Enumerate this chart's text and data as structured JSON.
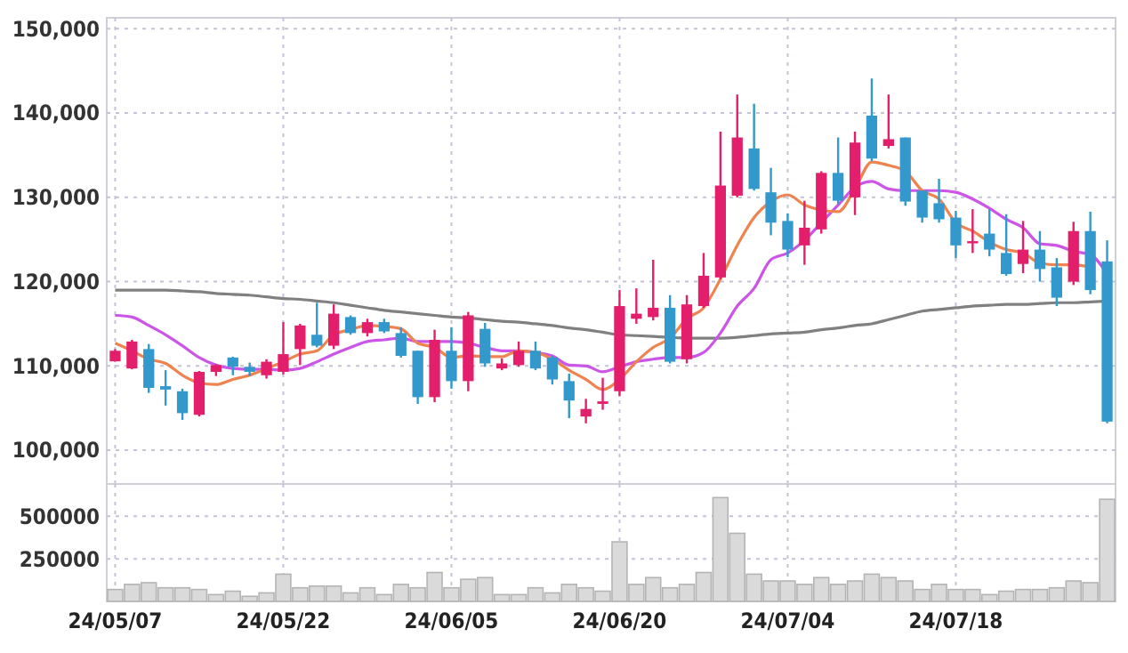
{
  "chart_data": [
    {
      "type": "candlestick",
      "categories": [
        null,
        null,
        null,
        null,
        null,
        null,
        null,
        null,
        null,
        null,
        null,
        null,
        null,
        null,
        null,
        null,
        null,
        null,
        null,
        null,
        null,
        null,
        null,
        null,
        null,
        null,
        null,
        null,
        null,
        null,
        null,
        null,
        null,
        null,
        null,
        null,
        null,
        null,
        null,
        null,
        null,
        null,
        null,
        null,
        null,
        null,
        null,
        null,
        null,
        null,
        null,
        null,
        null,
        null,
        null,
        null,
        null,
        null,
        null,
        null
      ],
      "ohlc": [
        [
          110550,
          112000,
          110500,
          111800
        ],
        [
          109700,
          113100,
          109600,
          112900
        ],
        [
          112000,
          112600,
          106800,
          107400
        ],
        [
          107600,
          109500,
          105300,
          107200
        ],
        [
          107000,
          107300,
          103600,
          104400
        ],
        [
          104200,
          109400,
          104000,
          109300
        ],
        [
          109300,
          110200,
          108800,
          110100
        ],
        [
          111000,
          111100,
          108900,
          109900
        ],
        [
          109900,
          110400,
          108800,
          109300
        ],
        [
          108900,
          110800,
          108500,
          110500
        ],
        [
          109300,
          115200,
          109000,
          111400
        ],
        [
          112000,
          115000,
          110100,
          114800
        ],
        [
          113700,
          117500,
          112200,
          112400
        ],
        [
          112400,
          117300,
          112000,
          116200
        ],
        [
          115800,
          116000,
          113700,
          113900
        ],
        [
          113900,
          115600,
          113500,
          115200
        ],
        [
          115200,
          115600,
          113900,
          114100
        ],
        [
          113900,
          114600,
          111000,
          111200
        ],
        [
          111800,
          111800,
          105500,
          106300
        ],
        [
          106300,
          114300,
          105700,
          113100
        ],
        [
          111800,
          114600,
          107300,
          108200
        ],
        [
          108200,
          116400,
          107000,
          116000
        ],
        [
          114400,
          115100,
          109900,
          110300
        ],
        [
          109700,
          110900,
          109500,
          110300
        ],
        [
          110100,
          112900,
          109900,
          111800
        ],
        [
          111800,
          112900,
          109500,
          109700
        ],
        [
          111000,
          111200,
          107800,
          108400
        ],
        [
          108200,
          109100,
          103800,
          105900
        ],
        [
          104000,
          106100,
          103200,
          104900
        ],
        [
          105500,
          108600,
          104800,
          105800
        ],
        [
          107000,
          119000,
          106400,
          117100
        ],
        [
          115600,
          119200,
          115000,
          116200
        ],
        [
          115800,
          122600,
          115400,
          116900
        ],
        [
          116900,
          118400,
          110300,
          110500
        ],
        [
          110800,
          118400,
          110300,
          117300
        ],
        [
          117100,
          123400,
          116900,
          120700
        ],
        [
          120500,
          137800,
          120300,
          131400
        ],
        [
          130200,
          142200,
          130000,
          137100
        ],
        [
          135800,
          141100,
          130800,
          131000
        ],
        [
          130600,
          133500,
          125500,
          127000
        ],
        [
          127200,
          128100,
          122900,
          123800
        ],
        [
          124300,
          129600,
          122000,
          126400
        ],
        [
          126200,
          133100,
          125700,
          132900
        ],
        [
          132900,
          137100,
          129200,
          129600
        ],
        [
          130000,
          137800,
          127900,
          136500
        ],
        [
          139700,
          144100,
          134300,
          134600
        ],
        [
          136100,
          142200,
          135800,
          136900
        ],
        [
          137100,
          137100,
          129000,
          129500
        ],
        [
          130800,
          130800,
          127000,
          127600
        ],
        [
          129300,
          132200,
          127000,
          127400
        ],
        [
          127600,
          128400,
          122800,
          124300
        ],
        [
          124600,
          128600,
          123400,
          124800
        ],
        [
          125700,
          128600,
          123000,
          123800
        ],
        [
          123400,
          128000,
          120700,
          120900
        ],
        [
          122100,
          127200,
          121000,
          123800
        ],
        [
          123800,
          126000,
          120000,
          121500
        ],
        [
          121700,
          122800,
          117100,
          118100
        ],
        [
          120000,
          127100,
          119600,
          126000
        ],
        [
          126000,
          128300,
          118500,
          119000
        ],
        [
          122400,
          124900,
          103200,
          103400
        ]
      ],
      "colors": [
        "#e31f6c",
        "#e31f6c",
        "#3399cc",
        "#3399cc",
        "#3399cc",
        "#e31f6c",
        "#e31f6c",
        "#3399cc",
        "#3399cc",
        "#e31f6c",
        "#e31f6c",
        "#e31f6c",
        "#3399cc",
        "#e31f6c",
        "#3399cc",
        "#e31f6c",
        "#3399cc",
        "#3399cc",
        "#3399cc",
        "#e31f6c",
        "#3399cc",
        "#e31f6c",
        "#3399cc",
        "#e31f6c",
        "#e31f6c",
        "#3399cc",
        "#3399cc",
        "#3399cc",
        "#e31f6c",
        "#e31f6c",
        "#e31f6c",
        "#e31f6c",
        "#e31f6c",
        "#3399cc",
        "#e31f6c",
        "#e31f6c",
        "#e31f6c",
        "#e31f6c",
        "#3399cc",
        "#3399cc",
        "#3399cc",
        "#e31f6c",
        "#e31f6c",
        "#3399cc",
        "#e31f6c",
        "#3399cc",
        "#e31f6c",
        "#3399cc",
        "#3399cc",
        "#3399cc",
        "#3399cc",
        "#e31f6c",
        "#3399cc",
        "#3399cc",
        "#e31f6c",
        "#3399cc",
        "#3399cc",
        "#e31f6c",
        "#3399cc",
        "#3399cc"
      ],
      "series": [
        {
          "type": "line",
          "color": "#808080",
          "values": [
            119000,
            119000,
            119000,
            119000,
            118900,
            118800,
            118600,
            118500,
            118400,
            118200,
            118000,
            117900,
            117700,
            117500,
            117200,
            116900,
            116600,
            116400,
            116200,
            116000,
            115800,
            115700,
            115500,
            115300,
            115200,
            115000,
            114800,
            114500,
            114300,
            114000,
            113700,
            113600,
            113500,
            113400,
            113300,
            113300,
            113300,
            113400,
            113600,
            113800,
            113900,
            114000,
            114300,
            114500,
            114800,
            115000,
            115500,
            116000,
            116500,
            116700,
            116900,
            117100,
            117200,
            117300,
            117300,
            117400,
            117500,
            117500,
            117600,
            117700
          ]
        },
        {
          "type": "line",
          "color": "#cc55e8",
          "values": [
            116000,
            115800,
            114800,
            113700,
            112400,
            111000,
            110100,
            109700,
            109600,
            109600,
            109500,
            109700,
            110500,
            111400,
            112200,
            112900,
            113100,
            113300,
            112900,
            112900,
            112900,
            112700,
            112200,
            111800,
            111800,
            111600,
            111200,
            110100,
            110000,
            109300,
            109900,
            110500,
            110800,
            111000,
            111000,
            111600,
            113900,
            117100,
            119200,
            122600,
            123400,
            124900,
            127000,
            129100,
            131200,
            131900,
            131000,
            130800,
            130800,
            130800,
            130600,
            129800,
            128700,
            127400,
            126400,
            124500,
            124300,
            123600,
            123200,
            120900
          ]
        },
        {
          "type": "line",
          "color": "#ee8350",
          "values": [
            112700,
            111800,
            110800,
            110300,
            108900,
            108000,
            107800,
            108400,
            108900,
            109700,
            110500,
            111400,
            111800,
            113700,
            114300,
            114800,
            114700,
            114400,
            112700,
            112200,
            111000,
            111200,
            111100,
            111100,
            111800,
            111600,
            110800,
            109500,
            108400,
            107200,
            108400,
            110500,
            112200,
            113300,
            115600,
            116900,
            120300,
            124300,
            127600,
            129500,
            130300,
            129100,
            128500,
            128300,
            131000,
            134200,
            133800,
            133100,
            130800,
            129800,
            127000,
            126000,
            124700,
            123800,
            123400,
            122200,
            122000,
            122000,
            121700,
            null
          ]
        }
      ],
      "ylim": [
        96000,
        151300
      ],
      "yticks": [
        {
          "value": 100000,
          "label": "100,000"
        },
        {
          "value": 110000,
          "label": "110,000"
        },
        {
          "value": 120000,
          "label": "120,000"
        },
        {
          "value": 130000,
          "label": "130,000"
        },
        {
          "value": 140000,
          "label": "140,000"
        },
        {
          "value": 150000,
          "label": "150,000"
        }
      ],
      "grid": true,
      "tick_labels": "y"
    },
    {
      "type": "bar",
      "categories": [
        "24/05/07",
        null,
        null,
        null,
        null,
        null,
        null,
        null,
        null,
        null,
        "24/05/22",
        null,
        null,
        null,
        null,
        null,
        null,
        null,
        null,
        null,
        "24/06/05",
        null,
        null,
        null,
        null,
        null,
        null,
        null,
        null,
        null,
        "24/06/20",
        null,
        null,
        null,
        null,
        null,
        null,
        null,
        null,
        null,
        "24/07/04",
        null,
        null,
        null,
        null,
        null,
        null,
        null,
        null,
        null,
        "24/07/18",
        null,
        null,
        null,
        null,
        null,
        null,
        null,
        null,
        null
      ],
      "values": [
        70000,
        100000,
        110000,
        80000,
        80000,
        70000,
        40000,
        60000,
        30000,
        50000,
        160000,
        80000,
        90000,
        90000,
        50000,
        80000,
        40000,
        100000,
        80000,
        170000,
        80000,
        130000,
        140000,
        40000,
        40000,
        80000,
        50000,
        100000,
        80000,
        60000,
        350000,
        100000,
        140000,
        80000,
        100000,
        170000,
        610000,
        400000,
        160000,
        120000,
        120000,
        100000,
        140000,
        100000,
        120000,
        160000,
        140000,
        120000,
        70000,
        100000,
        70000,
        70000,
        40000,
        60000,
        70000,
        70000,
        80000,
        120000,
        110000,
        600000
      ],
      "color": "#dadada",
      "ylim": [
        0,
        690000
      ],
      "yticks": [
        250000,
        500000
      ],
      "grid": true
    }
  ]
}
